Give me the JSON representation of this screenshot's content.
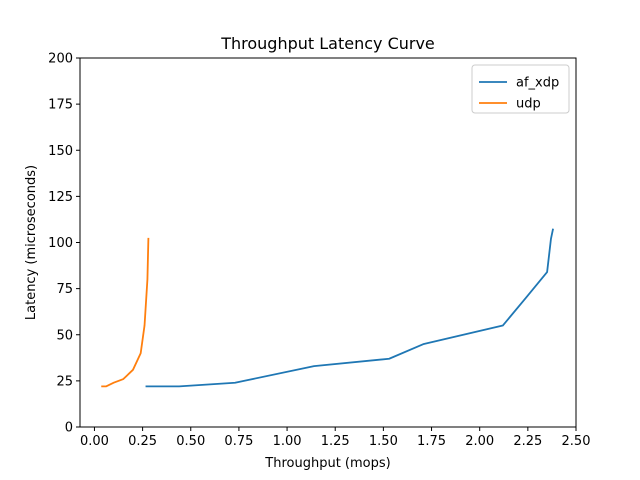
{
  "chart_data": {
    "type": "line",
    "title": "Throughput Latency Curve",
    "xlabel": "Throughput (mops)",
    "ylabel": "Latency (microseconds)",
    "xlim": [
      -0.075,
      2.5
    ],
    "ylim": [
      0,
      200
    ],
    "xticks": [
      0.0,
      0.25,
      0.5,
      0.75,
      1.0,
      1.25,
      1.5,
      1.75,
      2.0,
      2.25,
      2.5
    ],
    "xtick_labels": [
      "0.00",
      "0.25",
      "0.50",
      "0.75",
      "1.00",
      "1.25",
      "1.50",
      "1.75",
      "2.00",
      "2.25",
      "2.50"
    ],
    "yticks": [
      0,
      25,
      50,
      75,
      100,
      125,
      150,
      175,
      200
    ],
    "ytick_labels": [
      "0",
      "25",
      "50",
      "75",
      "100",
      "125",
      "150",
      "175",
      "200"
    ],
    "grid": false,
    "legend_position": "top-right",
    "series": [
      {
        "name": "af_xdp",
        "color": "#1f77b4",
        "x": [
          0.27,
          0.44,
          0.73,
          1.14,
          1.53,
          1.71,
          2.12,
          2.24,
          2.35,
          2.37,
          2.38
        ],
        "y": [
          22,
          22,
          24,
          33,
          37,
          45,
          55,
          70,
          84,
          102,
          107
        ]
      },
      {
        "name": "udp",
        "color": "#ff7f0e",
        "x": [
          0.04,
          0.06,
          0.1,
          0.15,
          0.2,
          0.24,
          0.26,
          0.275,
          0.28
        ],
        "y": [
          22,
          22,
          24,
          26,
          31,
          40,
          55,
          80,
          102
        ]
      }
    ]
  }
}
